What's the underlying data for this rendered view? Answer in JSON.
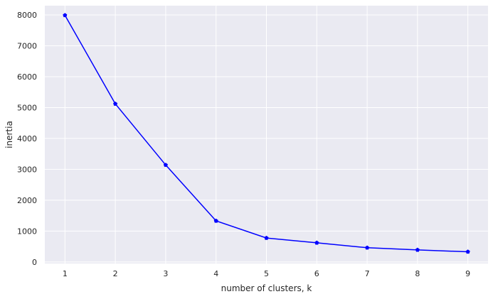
{
  "chart_data": {
    "type": "line",
    "title": "",
    "xlabel": "number of clusters, k",
    "ylabel": "inertia",
    "x": [
      1,
      2,
      3,
      4,
      5,
      6,
      7,
      8,
      9
    ],
    "series": [
      {
        "values": [
          7990,
          5120,
          3140,
          1330,
          775,
          620,
          460,
          390,
          330
        ],
        "color": "#0000ff",
        "marker": "pentagon"
      }
    ],
    "xticks": [
      "1",
      "2",
      "3",
      "4",
      "5",
      "6",
      "7",
      "8",
      "9"
    ],
    "yticks": [
      "0",
      "1000",
      "2000",
      "3000",
      "4000",
      "5000",
      "6000",
      "7000",
      "8000"
    ],
    "xlim": [
      0.6,
      9.4
    ],
    "ylim": [
      -50,
      8300
    ],
    "grid": true,
    "background_color": "#eaeaf2",
    "grid_color": "#ffffff"
  }
}
